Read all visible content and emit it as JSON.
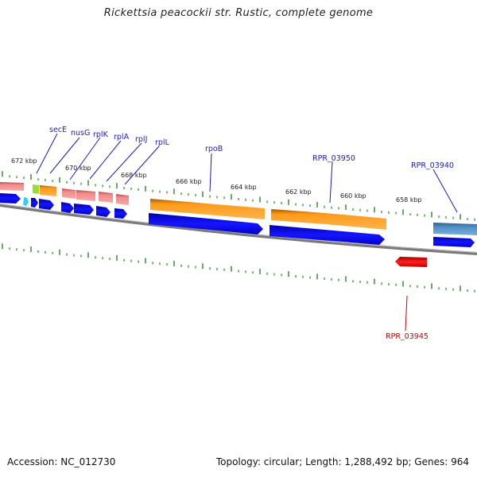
{
  "title": "Rickettsia peacockii str. Rustic, complete genome",
  "footer": {
    "accession": "Accession: NC_012730",
    "summary": "Topology: circular; Length: 1,288,492 bp; Genes: 964"
  },
  "scale_labels": [
    "672 kbp",
    "670 kbp",
    "668 kbp",
    "666 kbp",
    "664 kbp",
    "662 kbp",
    "660 kbp",
    "658 kbp"
  ],
  "gene_labels": [
    "secE",
    "nusG",
    "rplK",
    "rplA",
    "rplJ",
    "rplL",
    "rpoB",
    "RPR_03950",
    "RPR_03940",
    "RPR_03945"
  ],
  "colors": {
    "cds_blue": "#1010e0",
    "orange": "#ff8c00",
    "pink": "#f07878",
    "green": "#99dd33",
    "cyan": "#33ccff",
    "steel": "#4682b4",
    "red": "#e01010",
    "tick_green": "#228b22",
    "backbone": "#888888"
  }
}
